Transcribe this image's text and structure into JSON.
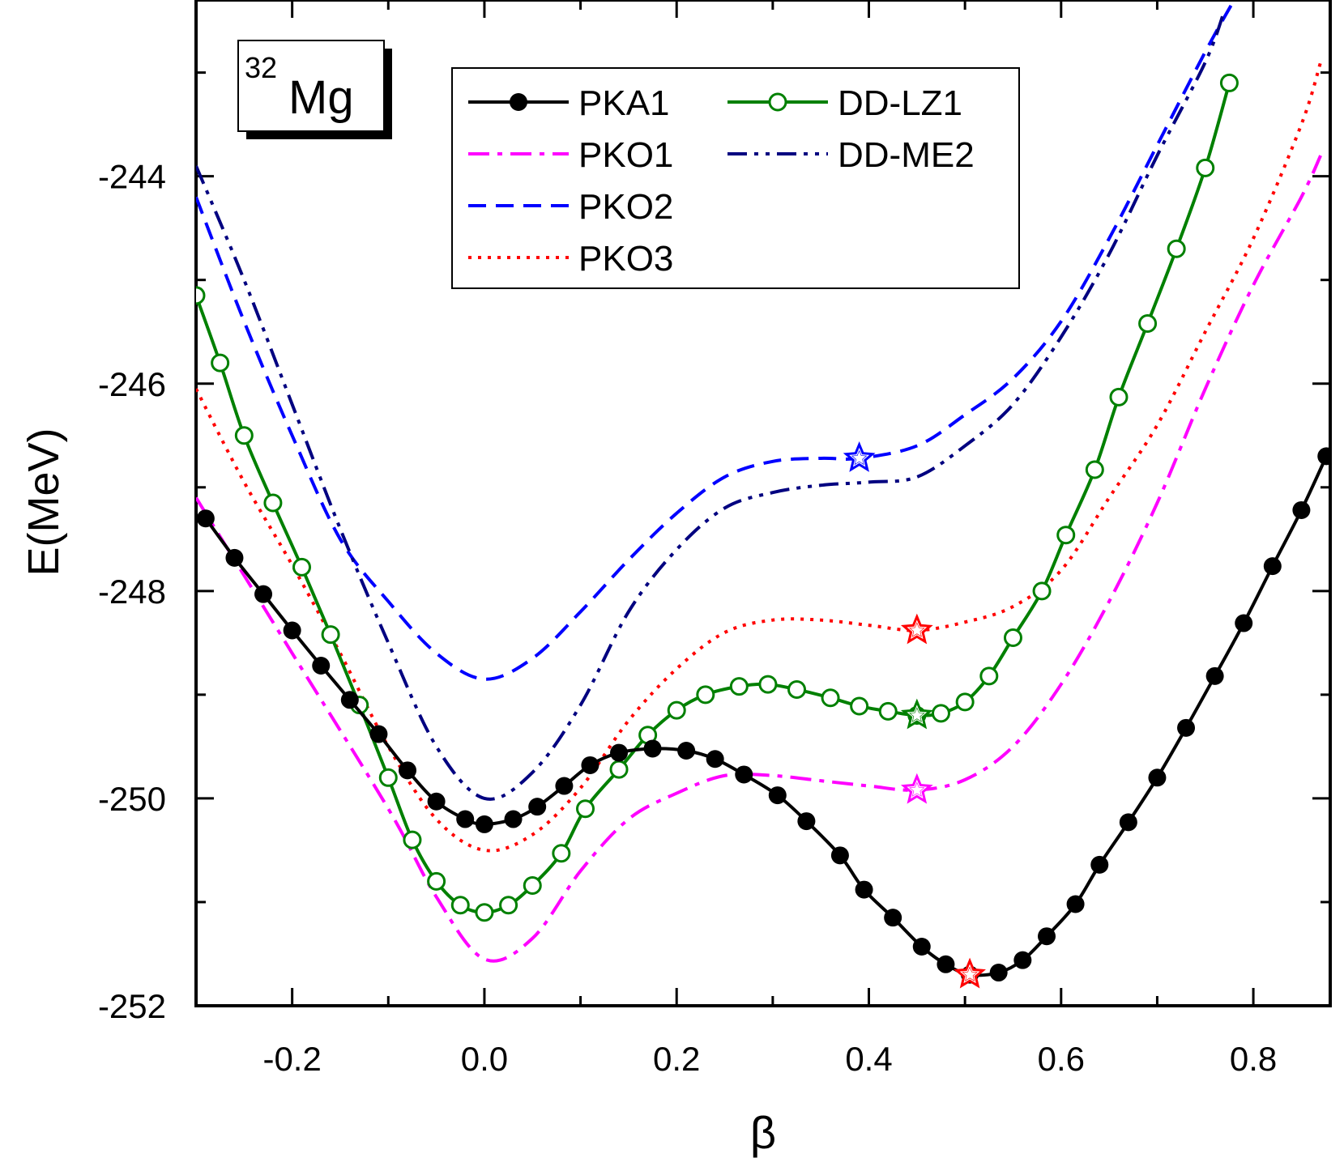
{
  "chart_data": {
    "type": "line",
    "title": "",
    "nucleus": {
      "mass": "32",
      "symbol": "Mg"
    },
    "xlabel": "β",
    "ylabel": "E(MeV)",
    "xlim": [
      -0.3,
      0.88
    ],
    "ylim": [
      -252,
      -242.3
    ],
    "x_ticks": [
      -0.2,
      0.0,
      0.2,
      0.4,
      0.6,
      0.8
    ],
    "x_tick_labels": [
      "-0.2",
      "0.0",
      "0.2",
      "0.4",
      "0.6",
      "0.8"
    ],
    "y_ticks": [
      -252,
      -250,
      -248,
      -246,
      -244
    ],
    "y_tick_labels": [
      "-252",
      "-250",
      "-248",
      "-246",
      "-244"
    ],
    "legend_position": "top-center",
    "series": [
      {
        "name": "PKA1",
        "color": "#000000",
        "dash": "solid",
        "marker": "filled-circle",
        "points": [
          [
            -0.29,
            -247.3
          ],
          [
            -0.26,
            -247.68
          ],
          [
            -0.23,
            -248.03
          ],
          [
            -0.2,
            -248.38
          ],
          [
            -0.17,
            -248.72
          ],
          [
            -0.14,
            -249.05
          ],
          [
            -0.11,
            -249.38
          ],
          [
            -0.08,
            -249.73
          ],
          [
            -0.05,
            -250.03
          ],
          [
            -0.02,
            -250.2
          ],
          [
            0.0,
            -250.25
          ],
          [
            0.03,
            -250.2
          ],
          [
            0.055,
            -250.08
          ],
          [
            0.083,
            -249.88
          ],
          [
            0.11,
            -249.68
          ],
          [
            0.14,
            -249.56
          ],
          [
            0.175,
            -249.52
          ],
          [
            0.21,
            -249.54
          ],
          [
            0.24,
            -249.62
          ],
          [
            0.27,
            -249.77
          ],
          [
            0.305,
            -249.97
          ],
          [
            0.335,
            -250.22
          ],
          [
            0.37,
            -250.55
          ],
          [
            0.395,
            -250.88
          ],
          [
            0.425,
            -251.15
          ],
          [
            0.455,
            -251.43
          ],
          [
            0.48,
            -251.6
          ],
          [
            0.505,
            -251.7
          ],
          [
            0.535,
            -251.68
          ],
          [
            0.56,
            -251.56
          ],
          [
            0.585,
            -251.33
          ],
          [
            0.615,
            -251.02
          ],
          [
            0.64,
            -250.64
          ],
          [
            0.67,
            -250.23
          ],
          [
            0.7,
            -249.8
          ],
          [
            0.73,
            -249.32
          ],
          [
            0.76,
            -248.82
          ],
          [
            0.79,
            -248.31
          ],
          [
            0.82,
            -247.76
          ],
          [
            0.85,
            -247.22
          ],
          [
            0.876,
            -246.7
          ]
        ]
      },
      {
        "name": "PKO1",
        "color": "#ff00ff",
        "dash": "dash-dot",
        "marker": "none",
        "points": [
          [
            -0.3,
            -247.1
          ],
          [
            -0.2,
            -248.6
          ],
          [
            -0.1,
            -250.1
          ],
          [
            -0.05,
            -250.95
          ],
          [
            0.0,
            -251.55
          ],
          [
            0.05,
            -251.35
          ],
          [
            0.1,
            -250.7
          ],
          [
            0.15,
            -250.2
          ],
          [
            0.2,
            -249.95
          ],
          [
            0.25,
            -249.78
          ],
          [
            0.3,
            -249.78
          ],
          [
            0.35,
            -249.83
          ],
          [
            0.4,
            -249.88
          ],
          [
            0.45,
            -249.92
          ],
          [
            0.5,
            -249.82
          ],
          [
            0.55,
            -249.5
          ],
          [
            0.6,
            -248.9
          ],
          [
            0.65,
            -248.1
          ],
          [
            0.7,
            -247.15
          ],
          [
            0.75,
            -246.05
          ],
          [
            0.8,
            -245.05
          ],
          [
            0.85,
            -244.2
          ],
          [
            0.87,
            -243.8
          ]
        ]
      },
      {
        "name": "PKO2",
        "color": "#0000ff",
        "dash": "dash",
        "marker": "none",
        "points": [
          [
            -0.3,
            -244.2
          ],
          [
            -0.25,
            -245.4
          ],
          [
            -0.2,
            -246.5
          ],
          [
            -0.15,
            -247.5
          ],
          [
            -0.1,
            -248.1
          ],
          [
            -0.05,
            -248.6
          ],
          [
            0.0,
            -248.85
          ],
          [
            0.05,
            -248.65
          ],
          [
            0.1,
            -248.2
          ],
          [
            0.15,
            -247.7
          ],
          [
            0.2,
            -247.25
          ],
          [
            0.25,
            -246.9
          ],
          [
            0.3,
            -246.75
          ],
          [
            0.35,
            -246.72
          ],
          [
            0.39,
            -246.72
          ],
          [
            0.45,
            -246.6
          ],
          [
            0.5,
            -246.3
          ],
          [
            0.55,
            -245.95
          ],
          [
            0.6,
            -245.4
          ],
          [
            0.65,
            -244.6
          ],
          [
            0.7,
            -243.7
          ],
          [
            0.75,
            -242.8
          ],
          [
            0.78,
            -242.3
          ]
        ]
      },
      {
        "name": "PKO3",
        "color": "#ff0000",
        "dash": "dot",
        "marker": "none",
        "points": [
          [
            -0.3,
            -246.05
          ],
          [
            -0.25,
            -246.95
          ],
          [
            -0.2,
            -247.75
          ],
          [
            -0.15,
            -248.6
          ],
          [
            -0.1,
            -249.5
          ],
          [
            -0.05,
            -250.2
          ],
          [
            0.0,
            -250.5
          ],
          [
            0.05,
            -250.35
          ],
          [
            0.1,
            -249.9
          ],
          [
            0.15,
            -249.25
          ],
          [
            0.2,
            -248.75
          ],
          [
            0.25,
            -248.4
          ],
          [
            0.3,
            -248.28
          ],
          [
            0.35,
            -248.28
          ],
          [
            0.4,
            -248.33
          ],
          [
            0.45,
            -248.38
          ],
          [
            0.5,
            -248.3
          ],
          [
            0.55,
            -248.15
          ],
          [
            0.6,
            -247.8
          ],
          [
            0.65,
            -247.1
          ],
          [
            0.7,
            -246.4
          ],
          [
            0.75,
            -245.5
          ],
          [
            0.8,
            -244.6
          ],
          [
            0.85,
            -243.5
          ],
          [
            0.87,
            -242.9
          ]
        ]
      },
      {
        "name": "DD-LZ1",
        "color": "#008000",
        "dash": "solid",
        "marker": "open-circle",
        "points": [
          [
            -0.3,
            -245.15
          ],
          [
            -0.275,
            -245.8
          ],
          [
            -0.25,
            -246.5
          ],
          [
            -0.22,
            -247.15
          ],
          [
            -0.19,
            -247.77
          ],
          [
            -0.16,
            -248.42
          ],
          [
            -0.13,
            -249.1
          ],
          [
            -0.1,
            -249.8
          ],
          [
            -0.075,
            -250.4
          ],
          [
            -0.05,
            -250.8
          ],
          [
            -0.025,
            -251.03
          ],
          [
            0.0,
            -251.1
          ],
          [
            0.025,
            -251.03
          ],
          [
            0.05,
            -250.84
          ],
          [
            0.08,
            -250.53
          ],
          [
            0.105,
            -250.1
          ],
          [
            0.14,
            -249.72
          ],
          [
            0.17,
            -249.39
          ],
          [
            0.2,
            -249.15
          ],
          [
            0.23,
            -249.0
          ],
          [
            0.265,
            -248.92
          ],
          [
            0.295,
            -248.9
          ],
          [
            0.325,
            -248.95
          ],
          [
            0.36,
            -249.03
          ],
          [
            0.39,
            -249.11
          ],
          [
            0.42,
            -249.16
          ],
          [
            0.45,
            -249.2
          ],
          [
            0.475,
            -249.18
          ],
          [
            0.5,
            -249.07
          ],
          [
            0.525,
            -248.82
          ],
          [
            0.55,
            -248.45
          ],
          [
            0.58,
            -248.0
          ],
          [
            0.605,
            -247.46
          ],
          [
            0.635,
            -246.83
          ],
          [
            0.66,
            -246.13
          ],
          [
            0.69,
            -245.42
          ],
          [
            0.72,
            -244.7
          ],
          [
            0.75,
            -243.92
          ],
          [
            0.775,
            -243.1
          ]
        ]
      },
      {
        "name": "DD-ME2",
        "color": "#000080",
        "dash": "dash-dot-dot",
        "marker": "none",
        "points": [
          [
            -0.3,
            -243.9
          ],
          [
            -0.25,
            -245.0
          ],
          [
            -0.2,
            -246.2
          ],
          [
            -0.15,
            -247.4
          ],
          [
            -0.1,
            -248.5
          ],
          [
            -0.05,
            -249.5
          ],
          [
            0.0,
            -250.0
          ],
          [
            0.05,
            -249.75
          ],
          [
            0.1,
            -249.1
          ],
          [
            0.15,
            -248.2
          ],
          [
            0.2,
            -247.6
          ],
          [
            0.25,
            -247.2
          ],
          [
            0.3,
            -247.05
          ],
          [
            0.35,
            -246.98
          ],
          [
            0.4,
            -246.95
          ],
          [
            0.45,
            -246.9
          ],
          [
            0.5,
            -246.6
          ],
          [
            0.55,
            -246.2
          ],
          [
            0.6,
            -245.55
          ],
          [
            0.65,
            -244.75
          ],
          [
            0.7,
            -243.8
          ],
          [
            0.75,
            -242.9
          ],
          [
            0.77,
            -242.4
          ]
        ]
      }
    ],
    "star_markers": [
      {
        "series": "PKO2",
        "x": 0.39,
        "y": -246.72,
        "color": "#0000ff"
      },
      {
        "series": "PKO3",
        "x": 0.45,
        "y": -248.38,
        "color": "#ff0000"
      },
      {
        "series": "DD-LZ1",
        "x": 0.45,
        "y": -249.2,
        "color": "#008000"
      },
      {
        "series": "PKO1",
        "x": 0.45,
        "y": -249.92,
        "color": "#ff00ff"
      },
      {
        "series": "PKA1",
        "x": 0.505,
        "y": -251.7,
        "color": "#ff0000"
      }
    ]
  }
}
